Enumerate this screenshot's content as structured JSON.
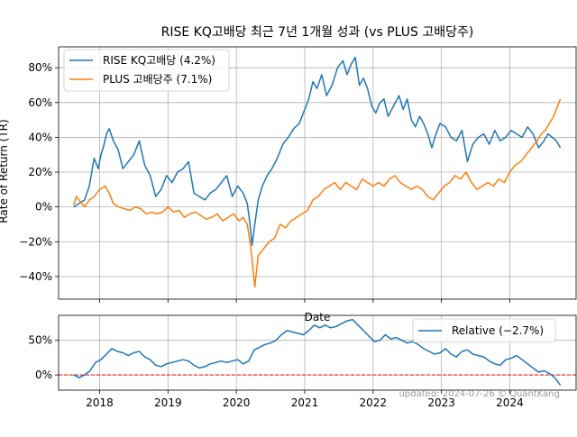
{
  "chart_data": [
    {
      "type": "line",
      "title": "RISE KQ고배당 최근 7년 1개월 성과 (vs PLUS 고배당주)",
      "xlabel": "Date",
      "ylabel": "Rate of Return (TR)",
      "xlim": [
        2017.4,
        2024.97
      ],
      "ylim": [
        -0.53,
        0.92
      ],
      "yticks": [
        -0.4,
        -0.2,
        0.0,
        0.2,
        0.4,
        0.6,
        0.8
      ],
      "ytick_labels": [
        "−40%",
        "−20%",
        "0%",
        "20%",
        "40%",
        "60%",
        "80%"
      ],
      "xticks": [
        2018,
        2019,
        2020,
        2021,
        2022,
        2023,
        2024
      ],
      "grid": true,
      "legend_position": "top-left",
      "series": [
        {
          "name": "RISE KQ고배당 (4.2%)",
          "color": "#1f77b4",
          "x": [
            2017.62,
            2017.7,
            2017.78,
            2017.85,
            2017.92,
            2017.98,
            2018.02,
            2018.06,
            2018.1,
            2018.14,
            2018.2,
            2018.27,
            2018.34,
            2018.42,
            2018.5,
            2018.58,
            2018.66,
            2018.74,
            2018.82,
            2018.9,
            2018.98,
            2019.06,
            2019.14,
            2019.22,
            2019.3,
            2019.38,
            2019.46,
            2019.54,
            2019.62,
            2019.7,
            2019.78,
            2019.86,
            2019.94,
            2020.02,
            2020.1,
            2020.16,
            2020.2,
            2020.23,
            2020.27,
            2020.32,
            2020.38,
            2020.45,
            2020.52,
            2020.6,
            2020.68,
            2020.76,
            2020.84,
            2020.92,
            2021.0,
            2021.06,
            2021.12,
            2021.18,
            2021.25,
            2021.32,
            2021.4,
            2021.48,
            2021.56,
            2021.62,
            2021.68,
            2021.74,
            2021.8,
            2021.86,
            2021.92,
            2021.98,
            2022.04,
            2022.1,
            2022.16,
            2022.22,
            2022.3,
            2022.38,
            2022.44,
            2022.5,
            2022.56,
            2022.62,
            2022.68,
            2022.74,
            2022.8,
            2022.86,
            2022.92,
            2022.98,
            2023.06,
            2023.14,
            2023.22,
            2023.3,
            2023.38,
            2023.46,
            2023.54,
            2023.62,
            2023.7,
            2023.78,
            2023.86,
            2023.94,
            2024.02,
            2024.1,
            2024.18,
            2024.26,
            2024.34,
            2024.42,
            2024.5,
            2024.56,
            2024.62,
            2024.68,
            2024.74
          ],
          "values": [
            0.0,
            0.02,
            0.04,
            0.12,
            0.28,
            0.22,
            0.3,
            0.35,
            0.42,
            0.45,
            0.38,
            0.33,
            0.22,
            0.26,
            0.3,
            0.38,
            0.24,
            0.18,
            0.06,
            0.1,
            0.18,
            0.14,
            0.2,
            0.22,
            0.26,
            0.08,
            0.06,
            0.04,
            0.08,
            0.1,
            0.14,
            0.18,
            0.06,
            0.12,
            0.08,
            0.02,
            -0.1,
            -0.22,
            -0.1,
            0.04,
            0.12,
            0.18,
            0.22,
            0.28,
            0.36,
            0.4,
            0.45,
            0.48,
            0.56,
            0.62,
            0.72,
            0.68,
            0.76,
            0.64,
            0.7,
            0.8,
            0.84,
            0.76,
            0.82,
            0.86,
            0.7,
            0.74,
            0.68,
            0.58,
            0.54,
            0.6,
            0.62,
            0.52,
            0.58,
            0.64,
            0.56,
            0.62,
            0.5,
            0.46,
            0.52,
            0.48,
            0.42,
            0.34,
            0.42,
            0.48,
            0.46,
            0.4,
            0.38,
            0.44,
            0.26,
            0.36,
            0.4,
            0.42,
            0.36,
            0.44,
            0.38,
            0.4,
            0.44,
            0.42,
            0.4,
            0.46,
            0.42,
            0.34,
            0.38,
            0.42,
            0.4,
            0.38,
            0.34
          ]
        },
        {
          "name": "PLUS 고배당주 (7.1%)",
          "color": "#ff7f0e",
          "x": [
            2017.62,
            2017.66,
            2017.72,
            2017.78,
            2017.85,
            2017.92,
            2018.0,
            2018.08,
            2018.14,
            2018.2,
            2018.28,
            2018.36,
            2018.44,
            2018.52,
            2018.6,
            2018.68,
            2018.76,
            2018.84,
            2018.92,
            2019.0,
            2019.08,
            2019.16,
            2019.24,
            2019.32,
            2019.4,
            2019.48,
            2019.56,
            2019.64,
            2019.72,
            2019.8,
            2019.88,
            2019.96,
            2020.04,
            2020.1,
            2020.16,
            2020.2,
            2020.23,
            2020.27,
            2020.32,
            2020.4,
            2020.48,
            2020.56,
            2020.64,
            2020.72,
            2020.8,
            2020.88,
            2020.96,
            2021.04,
            2021.12,
            2021.2,
            2021.28,
            2021.36,
            2021.44,
            2021.52,
            2021.6,
            2021.68,
            2021.76,
            2021.84,
            2021.92,
            2022.0,
            2022.08,
            2022.16,
            2022.24,
            2022.32,
            2022.4,
            2022.48,
            2022.56,
            2022.64,
            2022.72,
            2022.8,
            2022.88,
            2022.96,
            2023.04,
            2023.12,
            2023.2,
            2023.28,
            2023.36,
            2023.44,
            2023.52,
            2023.6,
            2023.68,
            2023.76,
            2023.84,
            2023.92,
            2024.0,
            2024.08,
            2024.16,
            2024.24,
            2024.32,
            2024.4,
            2024.46,
            2024.52,
            2024.58,
            2024.64,
            2024.7,
            2024.74
          ],
          "values": [
            0.01,
            0.06,
            0.03,
            0.0,
            0.04,
            0.06,
            0.1,
            0.12,
            0.08,
            0.02,
            0.0,
            -0.01,
            -0.02,
            0.0,
            -0.01,
            -0.04,
            -0.03,
            -0.04,
            -0.03,
            0.0,
            -0.03,
            -0.02,
            -0.06,
            -0.04,
            -0.03,
            -0.05,
            -0.07,
            -0.06,
            -0.04,
            -0.08,
            -0.06,
            -0.04,
            -0.08,
            -0.06,
            -0.1,
            -0.2,
            -0.3,
            -0.46,
            -0.28,
            -0.24,
            -0.2,
            -0.18,
            -0.1,
            -0.12,
            -0.08,
            -0.06,
            -0.04,
            -0.02,
            0.04,
            0.06,
            0.1,
            0.12,
            0.14,
            0.1,
            0.14,
            0.12,
            0.1,
            0.16,
            0.14,
            0.12,
            0.14,
            0.12,
            0.16,
            0.18,
            0.14,
            0.12,
            0.1,
            0.12,
            0.1,
            0.06,
            0.04,
            0.08,
            0.12,
            0.14,
            0.18,
            0.16,
            0.2,
            0.14,
            0.1,
            0.12,
            0.14,
            0.12,
            0.16,
            0.14,
            0.2,
            0.24,
            0.26,
            0.3,
            0.34,
            0.38,
            0.42,
            0.44,
            0.48,
            0.52,
            0.58,
            0.62
          ]
        }
      ]
    },
    {
      "type": "line",
      "xlabel": "",
      "ylabel": "",
      "xlim": [
        2017.4,
        2024.97
      ],
      "ylim": [
        -0.22,
        0.86
      ],
      "yticks": [
        0.0,
        0.5
      ],
      "ytick_labels": [
        "0%",
        "50%"
      ],
      "xticks": [
        2018,
        2019,
        2020,
        2021,
        2022,
        2023,
        2024
      ],
      "xtick_labels": [
        "2018",
        "2019",
        "2020",
        "2021",
        "2022",
        "2023",
        "2024"
      ],
      "grid": true,
      "legend_position": "top-right",
      "reference_line": {
        "y": 0.0,
        "color": "#ff0000",
        "style": "dashed"
      },
      "series": [
        {
          "name": "Relative (−2.7%)",
          "color": "#1f77b4",
          "x": [
            2017.62,
            2017.7,
            2017.78,
            2017.86,
            2017.94,
            2018.02,
            2018.1,
            2018.18,
            2018.26,
            2018.34,
            2018.42,
            2018.5,
            2018.58,
            2018.66,
            2018.74,
            2018.82,
            2018.9,
            2018.98,
            2019.06,
            2019.14,
            2019.22,
            2019.3,
            2019.38,
            2019.46,
            2019.54,
            2019.62,
            2019.7,
            2019.78,
            2019.86,
            2019.94,
            2020.02,
            2020.1,
            2020.18,
            2020.26,
            2020.34,
            2020.42,
            2020.5,
            2020.58,
            2020.66,
            2020.74,
            2020.82,
            2020.9,
            2020.98,
            2021.06,
            2021.14,
            2021.22,
            2021.3,
            2021.38,
            2021.46,
            2021.54,
            2021.62,
            2021.7,
            2021.78,
            2021.86,
            2021.94,
            2022.02,
            2022.1,
            2022.18,
            2022.26,
            2022.34,
            2022.42,
            2022.5,
            2022.58,
            2022.66,
            2022.74,
            2022.82,
            2022.9,
            2022.98,
            2023.06,
            2023.14,
            2023.22,
            2023.3,
            2023.38,
            2023.46,
            2023.54,
            2023.62,
            2023.7,
            2023.78,
            2023.86,
            2023.94,
            2024.02,
            2024.1,
            2024.18,
            2024.26,
            2024.34,
            2024.42,
            2024.5,
            2024.58,
            2024.66,
            2024.74
          ],
          "values": [
            0.0,
            -0.04,
            0.0,
            0.06,
            0.18,
            0.22,
            0.3,
            0.38,
            0.34,
            0.32,
            0.28,
            0.32,
            0.34,
            0.26,
            0.22,
            0.14,
            0.12,
            0.16,
            0.18,
            0.2,
            0.22,
            0.2,
            0.14,
            0.1,
            0.12,
            0.16,
            0.18,
            0.2,
            0.18,
            0.2,
            0.22,
            0.16,
            0.2,
            0.36,
            0.4,
            0.44,
            0.46,
            0.5,
            0.58,
            0.64,
            0.62,
            0.6,
            0.58,
            0.64,
            0.72,
            0.68,
            0.72,
            0.68,
            0.7,
            0.74,
            0.78,
            0.8,
            0.72,
            0.64,
            0.56,
            0.48,
            0.5,
            0.58,
            0.52,
            0.54,
            0.5,
            0.46,
            0.48,
            0.44,
            0.38,
            0.34,
            0.3,
            0.32,
            0.38,
            0.3,
            0.26,
            0.34,
            0.36,
            0.3,
            0.28,
            0.26,
            0.2,
            0.16,
            0.14,
            0.22,
            0.24,
            0.28,
            0.22,
            0.16,
            0.1,
            0.04,
            0.06,
            0.02,
            -0.04,
            -0.15
          ]
        }
      ]
    }
  ],
  "watermark": "updated: 2024-07-26 © QuantKang"
}
